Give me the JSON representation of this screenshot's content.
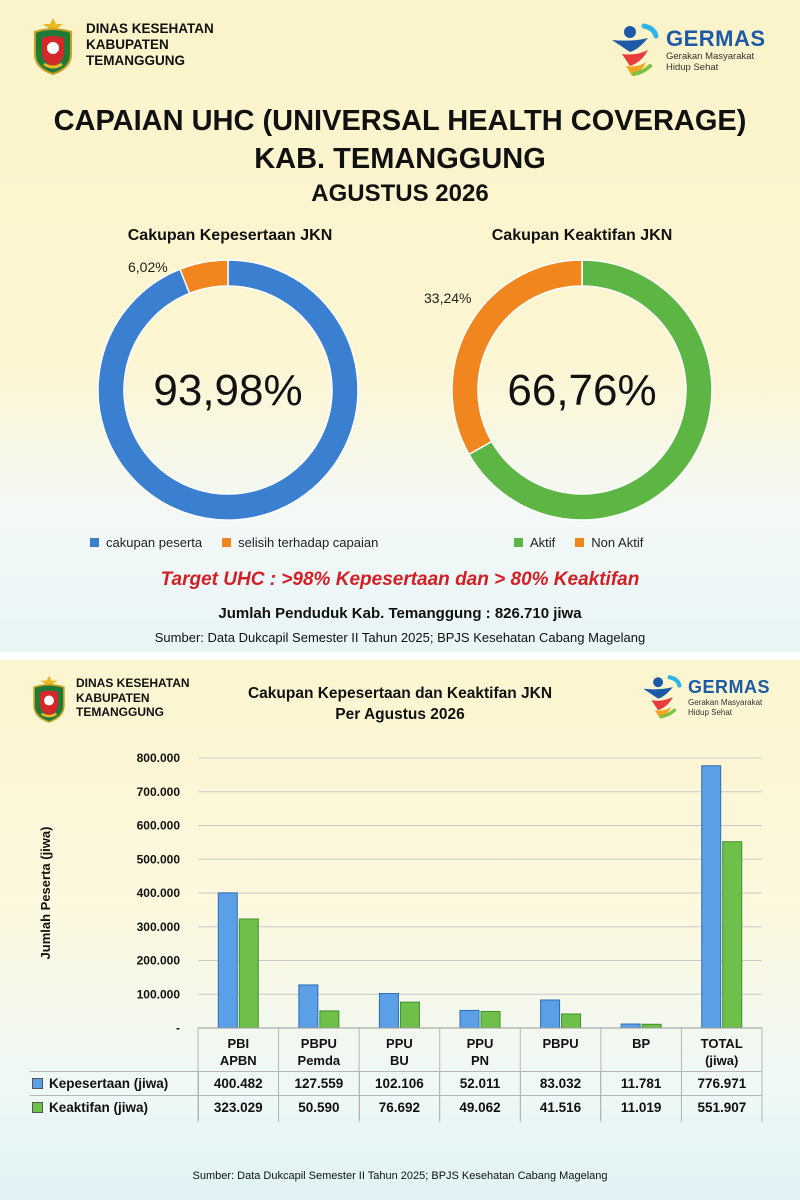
{
  "org": {
    "line1": "DINAS KESEHATAN",
    "line2": "KABUPATEN",
    "line3": "TEMANGGUNG"
  },
  "germas": {
    "name": "GERMAS",
    "sub1": "Gerakan Masyarakat",
    "sub2": "Hidup Sehat"
  },
  "header": {
    "title1": "CAPAIAN UHC (UNIVERSAL HEALTH COVERAGE)",
    "title2": "KAB. TEMANGGUNG",
    "title3": "AGUSTUS 2026"
  },
  "colors": {
    "blue": "#3a7fd0",
    "orange": "#f2861e",
    "green": "#5db544",
    "target_red": "#d31f24"
  },
  "chart_data": [
    {
      "type": "pie",
      "title": "Cakupan Kepesertaan JKN",
      "center_label": "93,98%",
      "slice_label": "6,02%",
      "slices": [
        {
          "name": "cakupan peserta",
          "value": 93.98,
          "color": "#3a7fd0"
        },
        {
          "name": "selisih terhadap capaian",
          "value": 6.02,
          "color": "#f2861e"
        }
      ],
      "legend": "bottom"
    },
    {
      "type": "pie",
      "title": "Cakupan Keaktifan JKN",
      "center_label": "66,76%",
      "slice_label": "33,24%",
      "slices": [
        {
          "name": "Aktif",
          "value": 66.76,
          "color": "#5db544"
        },
        {
          "name": "Non Aktif",
          "value": 33.24,
          "color": "#f2861e"
        }
      ],
      "legend": "bottom"
    },
    {
      "type": "bar",
      "title": "Cakupan Kepesertaan dan Keaktifan JKN",
      "subtitle": "Per Agustus 2026",
      "ylabel": "Jumlah Peserta (jiwa)",
      "ylim": [
        0,
        800000
      ],
      "yticks": [
        "-",
        "100.000",
        "200.000",
        "300.000",
        "400.000",
        "500.000",
        "600.000",
        "700.000",
        "800.000"
      ],
      "categories": [
        [
          "PBI",
          "APBN"
        ],
        [
          "PBPU",
          "Pemda"
        ],
        [
          "PPU",
          "BU"
        ],
        [
          "PPU",
          "PN"
        ],
        [
          "PBPU"
        ],
        [
          "BP"
        ],
        [
          "TOTAL",
          "(jiwa)"
        ]
      ],
      "series": [
        {
          "name": "Kepesertaan (jiwa)",
          "color": "#5b9fe6",
          "values": [
            400482,
            127559,
            102106,
            52011,
            83032,
            11781,
            776971
          ],
          "labels": [
            "400.482",
            "127.559",
            "102.106",
            "52.011",
            "83.032",
            "11.781",
            "776.971"
          ]
        },
        {
          "name": "Keaktifan (jiwa)",
          "color": "#6fc04a",
          "values": [
            323029,
            50590,
            76692,
            49062,
            41516,
            11019,
            551907
          ],
          "labels": [
            "323.029",
            "50.590",
            "76.692",
            "49.062",
            "41.516",
            "11.019",
            "551.907"
          ]
        }
      ],
      "grid": true
    }
  ],
  "target_text": "Target UHC : >98% Kepesertaan dan > 80% Keaktifan",
  "population_text": "Jumlah Penduduk Kab. Temanggung : 826.710 jiwa",
  "source_text": "Sumber: Data Dukcapil Semester II Tahun 2025; BPJS Kesehatan Cabang Magelang"
}
